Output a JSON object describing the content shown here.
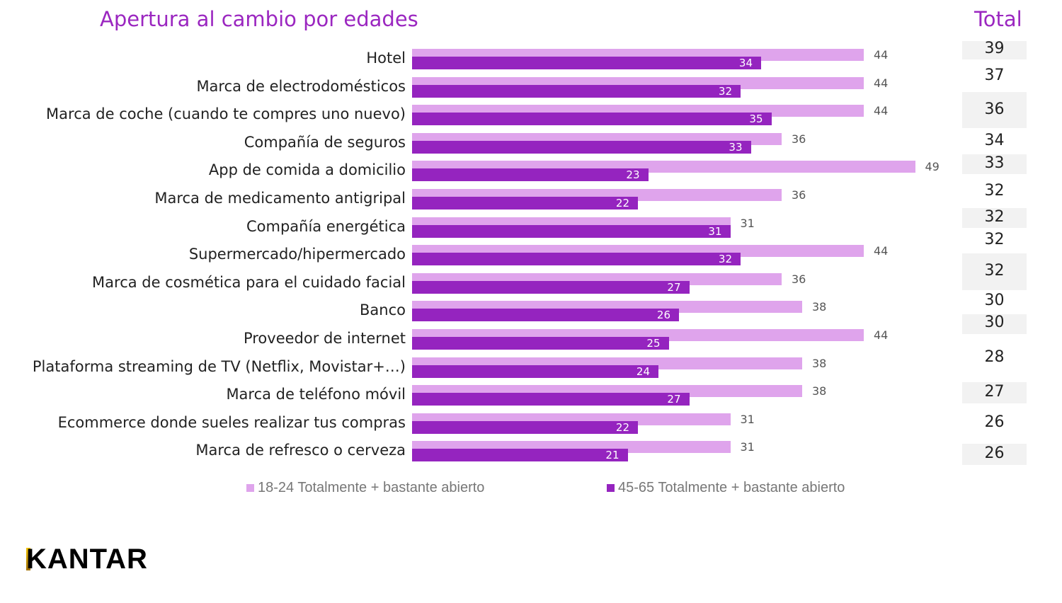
{
  "chart_data": {
    "type": "bar",
    "orientation": "horizontal",
    "title": "Apertura al cambio por edades",
    "total_header": "Total",
    "categories": [
      "Hotel",
      "Marca de electrodomésticos",
      "Marca de coche (cuando te compres uno nuevo)",
      "Compañía de seguros",
      "App de comida a domicilio",
      "Marca de medicamento antigripal",
      "Compañía energética",
      "Supermercado/hipermercado",
      "Marca de cosmética para el cuidado facial",
      "Banco",
      "Proveedor de internet",
      "Plataforma streaming de TV (Netflix, Movistar+…)",
      "Marca de teléfono móvil",
      "Ecommerce donde sueles realizar tus compras",
      "Marca de refresco o cerveza"
    ],
    "series": [
      {
        "name": "18-24 Totalmente + bastante abierto",
        "color": "#dfa4ec",
        "values": [
          44,
          44,
          44,
          36,
          49,
          36,
          31,
          44,
          36,
          38,
          44,
          38,
          38,
          31,
          31
        ]
      },
      {
        "name": "45-65 Totalmente + bastante abierto",
        "color": "#9524bf",
        "values": [
          34,
          32,
          35,
          33,
          23,
          22,
          31,
          32,
          27,
          26,
          25,
          24,
          27,
          22,
          21
        ]
      }
    ],
    "totals": [
      39,
      37,
      36,
      34,
      33,
      32,
      32,
      32,
      32,
      30,
      30,
      28,
      27,
      26,
      26
    ],
    "legend_position": "bottom"
  },
  "logo": "KANTAR"
}
